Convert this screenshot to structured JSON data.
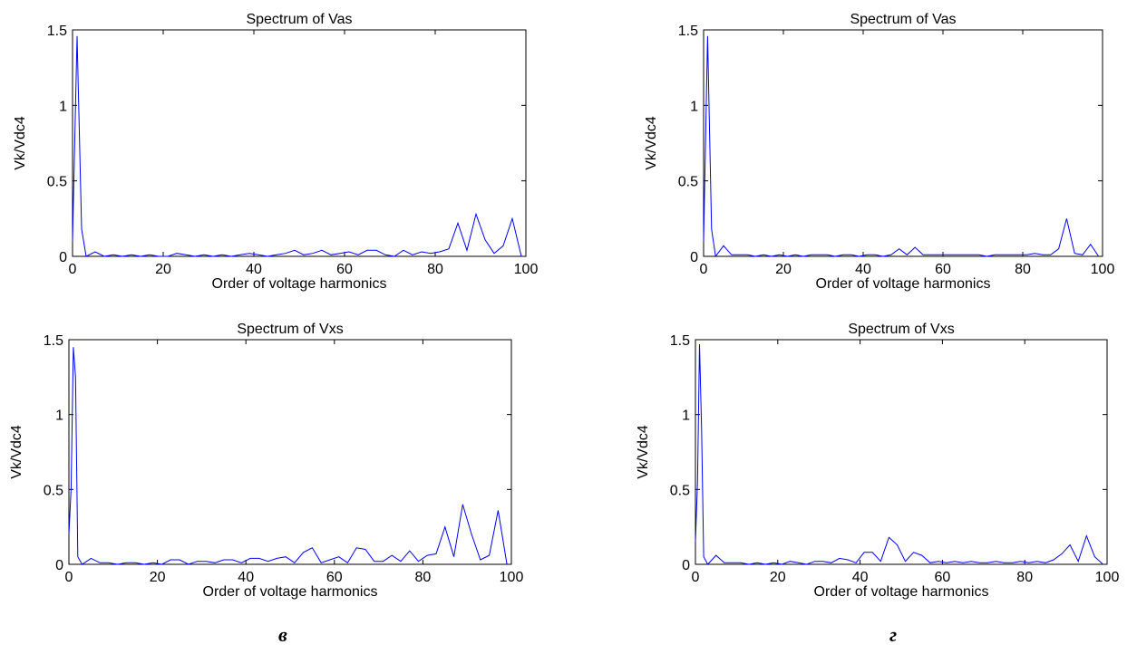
{
  "captions": {
    "left": "в",
    "right": "г"
  },
  "chart_data": [
    {
      "type": "line",
      "title": "Spectrum of Vas",
      "xlabel": "Order of voltage harmonics",
      "ylabel": "Vk/Vdc4",
      "xlim": [
        0,
        100
      ],
      "ylim": [
        0,
        1.5
      ],
      "xticks": [
        "0",
        "20",
        "40",
        "60",
        "80",
        "100"
      ],
      "yticks": [
        "0",
        "0.5",
        "1",
        "1.5"
      ],
      "color": "#0000ff",
      "x": [
        0,
        1,
        2,
        3,
        5,
        7,
        9,
        11,
        13,
        15,
        17,
        19,
        21,
        23,
        25,
        27,
        29,
        31,
        33,
        35,
        37,
        39,
        41,
        43,
        45,
        47,
        49,
        51,
        53,
        55,
        57,
        59,
        61,
        63,
        65,
        67,
        69,
        71,
        73,
        75,
        77,
        79,
        81,
        83,
        85,
        87,
        89,
        91,
        93,
        95,
        97,
        99
      ],
      "y": [
        0.1,
        1.46,
        0.18,
        0,
        0.03,
        0,
        0.01,
        0,
        0.01,
        0,
        0.01,
        0,
        0,
        0.02,
        0.01,
        0,
        0.01,
        0,
        0.01,
        0,
        0.01,
        0.02,
        0.01,
        0,
        0.01,
        0.02,
        0.04,
        0.01,
        0.02,
        0.04,
        0.01,
        0.02,
        0.03,
        0.01,
        0.04,
        0.04,
        0.01,
        0,
        0.04,
        0.01,
        0.03,
        0.02,
        0.03,
        0.05,
        0.22,
        0.04,
        0.28,
        0.11,
        0.02,
        0.07,
        0.25,
        0
      ]
    },
    {
      "type": "line",
      "title": "Spectrum of Vas",
      "xlabel": "Order of voltage harmonics",
      "ylabel": "Vk/Vdc4",
      "xlim": [
        0,
        100
      ],
      "ylim": [
        0,
        1.5
      ],
      "xticks": [
        "0",
        "20",
        "40",
        "60",
        "80",
        "100"
      ],
      "yticks": [
        "0",
        "0.5",
        "1",
        "1.5"
      ],
      "color": "#0000ff",
      "x": [
        0,
        1,
        2,
        3,
        5,
        7,
        9,
        11,
        13,
        15,
        17,
        19,
        21,
        23,
        25,
        27,
        29,
        31,
        33,
        35,
        37,
        39,
        41,
        43,
        45,
        47,
        49,
        51,
        53,
        55,
        57,
        59,
        61,
        63,
        65,
        67,
        69,
        71,
        73,
        75,
        77,
        79,
        81,
        83,
        85,
        87,
        89,
        91,
        93,
        95,
        97,
        99
      ],
      "y": [
        0.1,
        1.46,
        0.18,
        0,
        0.07,
        0.01,
        0.01,
        0.01,
        0,
        0.01,
        0,
        0.01,
        0,
        0.01,
        0,
        0.01,
        0.01,
        0.01,
        0,
        0.01,
        0.01,
        0,
        0.01,
        0.01,
        0,
        0.01,
        0.05,
        0.01,
        0.06,
        0.01,
        0.01,
        0.01,
        0.01,
        0.01,
        0.01,
        0.01,
        0.01,
        0,
        0.01,
        0.01,
        0.01,
        0.01,
        0.01,
        0.02,
        0.01,
        0.01,
        0.05,
        0.25,
        0.02,
        0.01,
        0.08,
        0
      ]
    },
    {
      "type": "line",
      "title": "Spectrum of Vxs",
      "xlabel": "Order of voltage harmonics",
      "ylabel": "Vk/Vdc4",
      "xlim": [
        0,
        100
      ],
      "ylim": [
        0,
        1.5
      ],
      "xticks": [
        "0",
        "20",
        "40",
        "60",
        "80",
        "100"
      ],
      "yticks": [
        "0",
        "0.5",
        "1",
        "1.5"
      ],
      "color": "#0000ff",
      "x": [
        0,
        0.5,
        1,
        1.5,
        2,
        3,
        5,
        7,
        9,
        11,
        13,
        15,
        17,
        19,
        21,
        23,
        25,
        27,
        29,
        31,
        33,
        35,
        37,
        39,
        41,
        43,
        45,
        47,
        49,
        51,
        53,
        55,
        57,
        59,
        61,
        63,
        65,
        67,
        69,
        71,
        73,
        75,
        77,
        79,
        81,
        83,
        85,
        87,
        89,
        91,
        93,
        95,
        97,
        99
      ],
      "y": [
        0.2,
        0.5,
        1.45,
        1.25,
        0.05,
        0,
        0.04,
        0.01,
        0.01,
        0,
        0.01,
        0.01,
        0,
        0.01,
        0,
        0.03,
        0.03,
        0,
        0.02,
        0.02,
        0.01,
        0.03,
        0.03,
        0.01,
        0.04,
        0.04,
        0.02,
        0.04,
        0.05,
        0.01,
        0.08,
        0.11,
        0.01,
        0.03,
        0.05,
        0.01,
        0.11,
        0.1,
        0.02,
        0.02,
        0.06,
        0.02,
        0.09,
        0.02,
        0.06,
        0.07,
        0.25,
        0.05,
        0.4,
        0.2,
        0.03,
        0.06,
        0.36,
        0
      ]
    },
    {
      "type": "line",
      "title": "Spectrum of Vxs",
      "xlabel": "Order of voltage harmonics",
      "ylabel": "Vk/Vdc4",
      "xlim": [
        0,
        100
      ],
      "ylim": [
        0,
        1.5
      ],
      "xticks": [
        "0",
        "20",
        "40",
        "60",
        "80",
        "100"
      ],
      "yticks": [
        "0",
        "0.5",
        "1",
        "1.5"
      ],
      "color": "#0000ff",
      "x": [
        0,
        0.5,
        1,
        1.5,
        2,
        3,
        5,
        7,
        9,
        11,
        13,
        15,
        17,
        19,
        21,
        23,
        25,
        27,
        29,
        31,
        33,
        35,
        37,
        39,
        41,
        43,
        45,
        47,
        49,
        51,
        53,
        55,
        57,
        59,
        61,
        63,
        65,
        67,
        69,
        71,
        73,
        75,
        77,
        79,
        81,
        83,
        85,
        87,
        89,
        91,
        93,
        95,
        97,
        99
      ],
      "y": [
        0.15,
        0.55,
        1.47,
        0.9,
        0.05,
        0,
        0.06,
        0.01,
        0.01,
        0.01,
        0,
        0.01,
        0,
        0.01,
        0,
        0.02,
        0.01,
        0,
        0.02,
        0.02,
        0.01,
        0.04,
        0.03,
        0.01,
        0.08,
        0.08,
        0.02,
        0.18,
        0.13,
        0.02,
        0.08,
        0.06,
        0.01,
        0.02,
        0.01,
        0.02,
        0.01,
        0.02,
        0.01,
        0.01,
        0.02,
        0.01,
        0.01,
        0.02,
        0.01,
        0.02,
        0.01,
        0.03,
        0.07,
        0.13,
        0.02,
        0.19,
        0.05,
        0
      ]
    }
  ]
}
